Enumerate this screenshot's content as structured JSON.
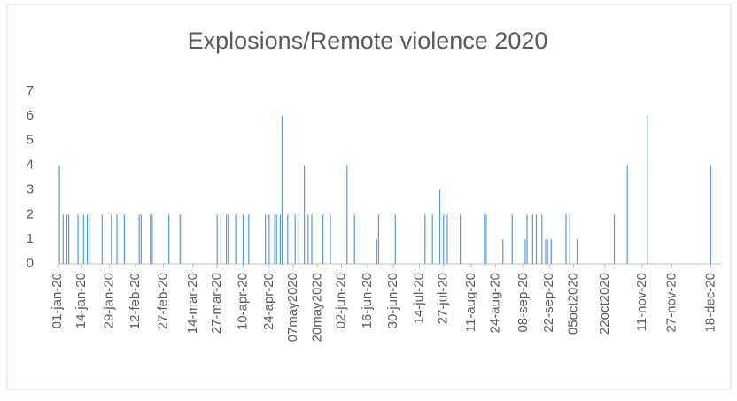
{
  "chart_data": {
    "type": "bar",
    "title": "Explosions/Remote violence 2020",
    "x": [
      1,
      3,
      5,
      6,
      11,
      14,
      16,
      17,
      24,
      29,
      32,
      36,
      44,
      45,
      50,
      51,
      60,
      66,
      67,
      86,
      88,
      91,
      92,
      96,
      100,
      103,
      112,
      114,
      117,
      118,
      120,
      121,
      124,
      128,
      130,
      133,
      135,
      137,
      143,
      147,
      156,
      160,
      172,
      173,
      182,
      198,
      202,
      206,
      208,
      210,
      217,
      230,
      231,
      240,
      245,
      252,
      253,
      256,
      258,
      261,
      263,
      264,
      266,
      274,
      276,
      280,
      300,
      307,
      318,
      352
    ],
    "values": [
      4,
      2,
      2,
      2,
      2,
      2,
      2,
      2,
      2,
      2,
      2,
      2,
      2,
      2,
      2,
      2,
      2,
      2,
      2,
      2,
      2,
      2,
      2,
      2,
      2,
      2,
      2,
      2,
      2,
      2,
      2,
      6,
      2,
      2,
      2,
      4,
      2,
      2,
      2,
      2,
      4,
      2,
      1,
      2,
      2,
      2,
      2,
      3,
      2,
      2,
      2,
      2,
      2,
      1,
      2,
      1,
      2,
      2,
      2,
      2,
      1,
      1,
      1,
      2,
      2,
      1,
      2,
      4,
      6,
      4
    ],
    "color": "#5b9bd5",
    "xlim": [
      0,
      358
    ],
    "xticks": [
      {
        "value": 0,
        "label": "01-jan-20"
      },
      {
        "value": 13,
        "label": "14-jan-20"
      },
      {
        "value": 28,
        "label": "29-jan-20"
      },
      {
        "value": 42,
        "label": "12-feb-20"
      },
      {
        "value": 57,
        "label": "27-feb-20"
      },
      {
        "value": 73,
        "label": "14-mar-20"
      },
      {
        "value": 86,
        "label": "27-mar-20"
      },
      {
        "value": 100,
        "label": "10-apr-20"
      },
      {
        "value": 114,
        "label": "24-apr-20"
      },
      {
        "value": 127,
        "label": "07may2020"
      },
      {
        "value": 140,
        "label": "20may2020"
      },
      {
        "value": 153,
        "label": "02-jun-20"
      },
      {
        "value": 167,
        "label": "16-jun-20"
      },
      {
        "value": 181,
        "label": "30-jun-20"
      },
      {
        "value": 195,
        "label": "14-jul-20"
      },
      {
        "value": 208,
        "label": "27-jul-20"
      },
      {
        "value": 223,
        "label": "11-aug-20"
      },
      {
        "value": 236,
        "label": "24-aug-20"
      },
      {
        "value": 251,
        "label": "08-sep-20"
      },
      {
        "value": 265,
        "label": "22-sep-20"
      },
      {
        "value": 278,
        "label": "05oct2020"
      },
      {
        "value": 295,
        "label": "22oct2020"
      },
      {
        "value": 315,
        "label": "11-nov-20"
      },
      {
        "value": 331,
        "label": "27-nov-20"
      },
      {
        "value": 352,
        "label": "18-dec-20"
      }
    ],
    "ylim": [
      0,
      7
    ],
    "yticks": [
      0,
      1,
      2,
      3,
      4,
      5,
      6,
      7
    ],
    "grid": false
  }
}
